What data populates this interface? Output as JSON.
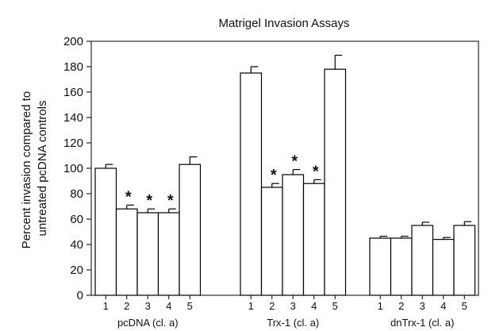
{
  "chart_data": {
    "type": "bar",
    "title": "Matrigel Invasion Assays",
    "ylabel_lines": [
      "Percent invasion compared to",
      "untreated pcDNA controls"
    ],
    "xlabel": "",
    "ylim": [
      0,
      200
    ],
    "yticks": [
      0,
      20,
      40,
      60,
      80,
      100,
      120,
      140,
      160,
      180,
      200
    ],
    "grid": false,
    "bar_color": "#ffffff",
    "edge_color": "#000000",
    "groups": [
      {
        "label": "pcDNA (cl. a)",
        "categories": [
          "1",
          "2",
          "3",
          "4",
          "5"
        ],
        "values": [
          100,
          68,
          65,
          65,
          103
        ],
        "errors": [
          3,
          3,
          3,
          3,
          6
        ],
        "significant": [
          false,
          true,
          true,
          true,
          false
        ]
      },
      {
        "label": "Trx-1 (cl. a)",
        "categories": [
          "1",
          "2",
          "3",
          "4",
          "5"
        ],
        "values": [
          175,
          85,
          95,
          88,
          178
        ],
        "errors": [
          5,
          3,
          4,
          3,
          11
        ],
        "significant": [
          false,
          true,
          true,
          true,
          false
        ]
      },
      {
        "label": "dnTrx-1 (cl. a)",
        "categories": [
          "1",
          "2",
          "3",
          "4",
          "5"
        ],
        "values": [
          45,
          45,
          55,
          44,
          55
        ],
        "errors": [
          1.5,
          1.5,
          2.5,
          1.5,
          3
        ],
        "significant": [
          false,
          false,
          false,
          false,
          false
        ]
      }
    ],
    "significance_marker": "*"
  }
}
